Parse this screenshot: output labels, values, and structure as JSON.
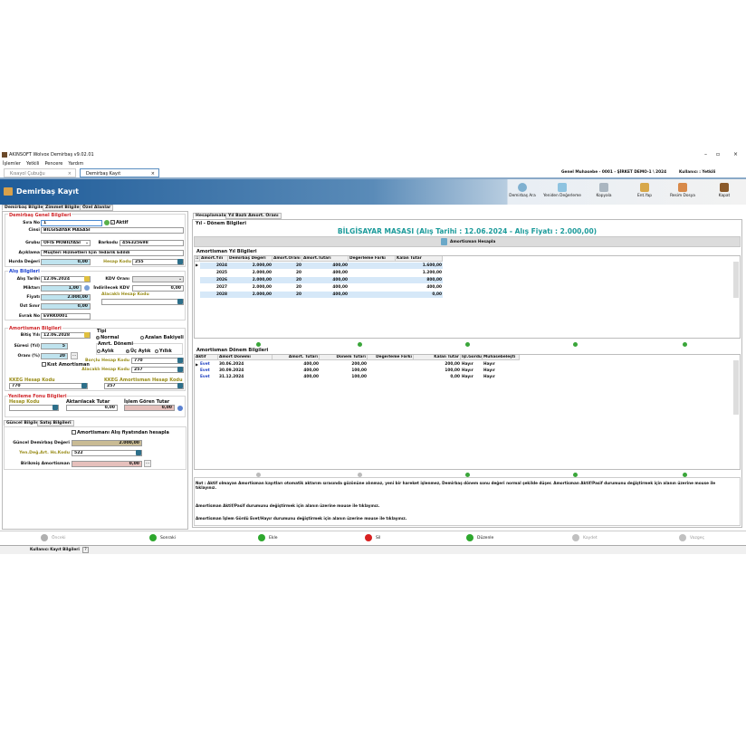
{
  "app": {
    "title": "AKINSOFT Wolvox Demirbaş v9.02.01",
    "menu": [
      "İşlemler",
      "Yetkili",
      "Pencere",
      "Yardım"
    ],
    "doc_tabs": [
      {
        "label": "Kısayol Çubuğu"
      },
      {
        "label": "Demirbaş Kayıt"
      }
    ],
    "company": "Genel Muhasebe - 0001 - ŞİRKET DEMO-1 \\ 2024",
    "user": "Kullanıcı : Yetkili"
  },
  "header": {
    "title": "Demirbaş Kayıt",
    "toolbar": [
      "Demirbaş Ara",
      "Yeniden Değerleme",
      "Kopyala",
      "Ent.Yap",
      "Resim Dosya",
      "Kapat"
    ]
  },
  "left": {
    "tabs": [
      "Demirbaş Bilgileri",
      "Zimmet Bilgileri",
      "Özel Alanlar"
    ],
    "genel": {
      "title": "Demirbaş Genel Bilgileri",
      "sira_no_label": "Sıra No",
      "sira_no": "1",
      "aktif_label": "Aktif",
      "aktif": true,
      "cinsi_label": "Cinsi",
      "cinsi": "BİLGİSAYAR MASASI",
      "grubu_label": "Grubu",
      "grubu": "OFİS MOBİLYASI",
      "barkod_label": "Barkodu",
      "barkod": "456325698",
      "aciklama_label": "Açıklama",
      "aciklama": "Müşteri Hizmetleri İçin Tedarik Edildi",
      "hurda_label": "Hurda Değeri",
      "hurda": "0,00",
      "hesap_kodu_label": "Hesap Kodu",
      "hesap_kodu": "255"
    },
    "alis": {
      "title": "Alış Bilgileri",
      "tarih_label": "Alış Tarihi",
      "tarih": "12.06.2024",
      "miktar_label": "Miktarı",
      "miktar": "1,00",
      "fiyat_label": "Fiyatı",
      "fiyat": "2.000,00",
      "ust_label": "Üst Sınır",
      "ust": "0,00",
      "evrak_label": "Evrak No",
      "evrak": "EVRK0001",
      "kdv_label": "KDV Oranı",
      "kdv": "",
      "ind_kdv_label": "İndirilecek KDV",
      "ind_kdv": "0,00",
      "alacakli_label": "Alacaklı Hesap Kodu",
      "alacakli": ""
    },
    "amort": {
      "title": "Amortisman Bilgileri",
      "bitis_label": "Bitiş Yılı",
      "bitis": "12.06.2028",
      "sure_label": "Süresi (Yıl)",
      "sure": "5",
      "oran_label": "Oranı (%)",
      "oran": "20",
      "kist_label": "Kıst Amortisman",
      "tipi_label": "Tipi",
      "tipi_opts": [
        "Normal",
        "Azalan Bakiyeli"
      ],
      "donem_label": "Amrt. Dönemi",
      "donem_opts": [
        "Aylık",
        "Üç Aylık",
        "Yıllık"
      ],
      "borclu_label": "Borçlu Hesap Kodu",
      "borclu": "770",
      "alacakli_label": "Alacaklı Hesap Kodu",
      "alacakli": "257",
      "kkeg_label": "KKEG Hesap Kodu",
      "kkeg": "770",
      "kkeg_am_label": "KKEG Amortisman Hesap Kodu",
      "kkeg_am": "257"
    },
    "yenileme": {
      "title": "Yenileme Fonu Bilgileri",
      "hesap_label": "Hesap Kodu",
      "hesap": "",
      "aktar_label": "Aktarılacak Tutar",
      "aktar": "0,00",
      "islem_label": "İşlem Gören Tutar",
      "islem": "0,00"
    },
    "bottom_tabs": [
      "Güncel Bilgiler",
      "Satış Bilgileri"
    ],
    "guncel": {
      "alis_chk": "Amortismanı Alış fiyatından hesapla",
      "deger_label": "Güncel Demirbaş Değeri",
      "deger": "2.000,00",
      "yen_label": "Yen.Değ.Art. Hs.Kodu",
      "yen": "522",
      "birikmis_label": "Birikmiş Amortisman",
      "birikmis": "0,00"
    }
  },
  "right": {
    "tabs": [
      "Hesaplamalar",
      "Yıl Bazlı Amort. Oranı"
    ],
    "section": "Yıl - Dönem Bilgileri",
    "headline": "BİLGİSAYAR MASASI (Alış Tarihi : 12.06.2024 - Alış Fiyatı : 2.000,00)",
    "calc_button": "Amortisman Hesapla",
    "yil_title": "Amortisman Yıl Bilgileri",
    "yil_cols": [
      "Amort.Yılı",
      "Demirbaş Değeri",
      "Amort.Oranı",
      "Amort.Tutarı",
      "Değerleme Farkı",
      "Kalan Tutar"
    ],
    "yil_rows": [
      [
        "2024",
        "2.000,00",
        "20",
        "400,00",
        "",
        "1.600,00"
      ],
      [
        "2025",
        "2.000,00",
        "20",
        "400,00",
        "",
        "1.200,00"
      ],
      [
        "2026",
        "2.000,00",
        "20",
        "400,00",
        "",
        "800,00"
      ],
      [
        "2027",
        "2.000,00",
        "20",
        "400,00",
        "",
        "400,00"
      ],
      [
        "2028",
        "2.000,00",
        "20",
        "400,00",
        "",
        "0,00"
      ]
    ],
    "donem_title": "Amortisman Dönem Bilgileri",
    "donem_cols": [
      "Aktif",
      "Amort Dönemi",
      "Amort. Tutarı",
      "Dönem Tutarı",
      "Değerleme Farkı",
      "Kalan Tutar",
      "İşl.Gördü",
      "Muhasebeleşti"
    ],
    "donem_rows": [
      [
        "Evet",
        "30.06.2024",
        "400,00",
        "200,00",
        "",
        "200,00",
        "Hayır",
        "Hayır"
      ],
      [
        "Evet",
        "30.09.2024",
        "400,00",
        "100,00",
        "",
        "100,00",
        "Hayır",
        "Hayır"
      ],
      [
        "Evet",
        "31.12.2024",
        "400,00",
        "100,00",
        "",
        "0,00",
        "Hayır",
        "Hayır"
      ]
    ],
    "notes": [
      "Not : Aktif olmayan Amortisman kayıtları otomatik aktarım sırasında gözönüne alınmaz, yeni bir hareket işlenmez, Demirbaş dönem sonu değeri normal şekilde düşer. Amortisman Aktif/Pasif durumunu değiştirmek için alanın üzerine mouse ile tıklayınız.",
      "Amortisman Aktif/Pasif durumunu değiştirmek için alanın üzerine mouse ile tıklayınız.",
      "Amortisman İşlem Gördü Evet/Hayır durumunu değiştirmek için alanın üzerine mouse ile tıklayınız."
    ]
  },
  "nav": [
    {
      "label": "Önceki",
      "color": "#b0b0b0"
    },
    {
      "label": "Sonraki",
      "color": "#2ea82e"
    },
    {
      "label": "Ekle",
      "color": "#2ea82e"
    },
    {
      "label": "Sil",
      "color": "#d82020"
    },
    {
      "label": "Düzenle",
      "color": "#2ea82e"
    },
    {
      "label": "Kaydet",
      "color": "#c0c0c0"
    },
    {
      "label": "Vazgeç",
      "color": "#c0c0c0"
    }
  ],
  "status": {
    "label": "Kullanıcı Kayıt Bilgileri",
    "help": "?"
  },
  "colors": {
    "header_blue": "#1f5c99",
    "headline": "#1b9a9a"
  }
}
